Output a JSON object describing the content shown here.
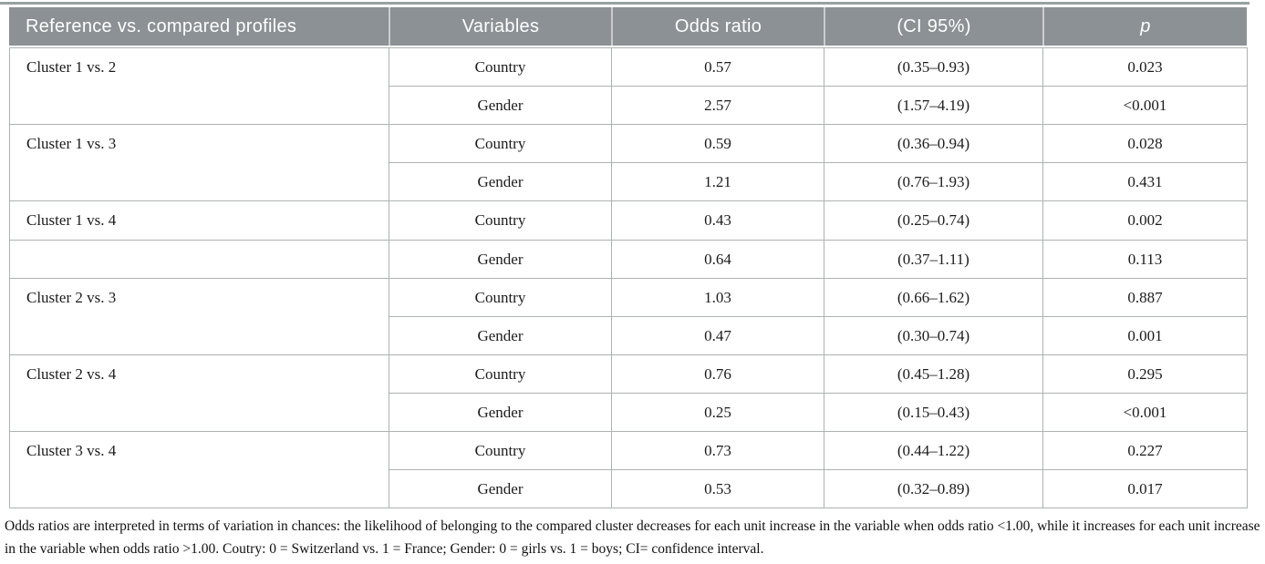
{
  "colors": {
    "header_bg": "#8b9194",
    "border": "#adb2b0",
    "text": "#1b1b1b"
  },
  "table": {
    "headers": [
      "Reference vs. compared profiles",
      "Variables",
      "Odds ratio",
      "(CI 95%)",
      "p"
    ],
    "blocks": [
      {
        "profile": "Cluster 1 vs. 2",
        "split": false,
        "rows": [
          {
            "variable": "Country",
            "odds_ratio": "0.57",
            "ci": "(0.35–0.93)",
            "p": "0.023"
          },
          {
            "variable": "Gender",
            "odds_ratio": "2.57",
            "ci": "(1.57–4.19)",
            "p": "<0.001"
          }
        ]
      },
      {
        "profile": "Cluster 1 vs. 3",
        "split": false,
        "rows": [
          {
            "variable": "Country",
            "odds_ratio": "0.59",
            "ci": "(0.36–0.94)",
            "p": "0.028"
          },
          {
            "variable": "Gender",
            "odds_ratio": "1.21",
            "ci": "(0.76–1.93)",
            "p": "0.431"
          }
        ]
      },
      {
        "profile": "Cluster 1 vs. 4",
        "split": true,
        "rows": [
          {
            "variable": "Country",
            "odds_ratio": "0.43",
            "ci": "(0.25–0.74)",
            "p": "0.002"
          },
          {
            "variable": "Gender",
            "odds_ratio": "0.64",
            "ci": "(0.37–1.11)",
            "p": "0.113"
          }
        ]
      },
      {
        "profile": "Cluster 2 vs. 3",
        "split": false,
        "rows": [
          {
            "variable": "Country",
            "odds_ratio": "1.03",
            "ci": "(0.66–1.62)",
            "p": "0.887"
          },
          {
            "variable": "Gender",
            "odds_ratio": "0.47",
            "ci": "(0.30–0.74)",
            "p": "0.001"
          }
        ]
      },
      {
        "profile": "Cluster 2 vs. 4",
        "split": false,
        "rows": [
          {
            "variable": "Country",
            "odds_ratio": "0.76",
            "ci": "(0.45–1.28)",
            "p": "0.295"
          },
          {
            "variable": "Gender",
            "odds_ratio": "0.25",
            "ci": "(0.15–0.43)",
            "p": "<0.001"
          }
        ]
      },
      {
        "profile": "Cluster 3 vs. 4",
        "split": false,
        "rows": [
          {
            "variable": "Country",
            "odds_ratio": "0.73",
            "ci": "(0.44–1.22)",
            "p": "0.227"
          },
          {
            "variable": "Gender",
            "odds_ratio": "0.53",
            "ci": "(0.32–0.89)",
            "p": "0.017"
          }
        ]
      }
    ],
    "footnote": "Odds ratios are interpreted in terms of variation in chances: the likelihood of belonging to the compared cluster decreases for each unit increase in the variable when odds ratio <1.00, while it increases for each unit increase in the variable when odds ratio >1.00. Coutry: 0 = Switzerland vs. 1 = France; Gender: 0 = girls vs. 1 = boys; CI= confidence interval."
  }
}
